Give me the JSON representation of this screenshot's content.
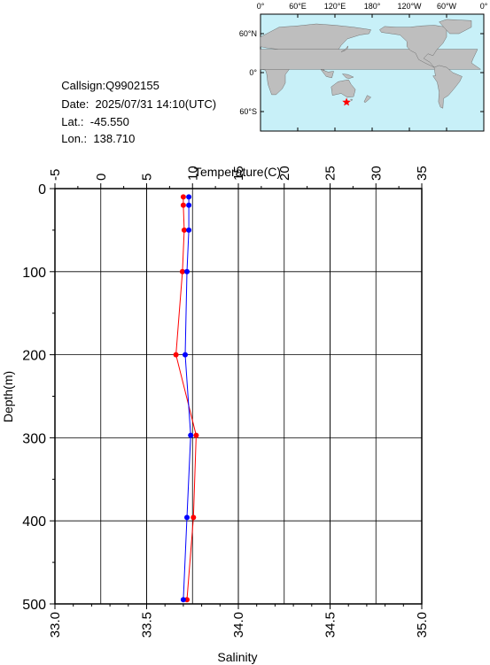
{
  "station": {
    "callsign_text": "Callsign:Q9902155",
    "date_label": "Date:",
    "date_value": "2025/07/31 14:10(UTC)",
    "lat_label": "Lat.:",
    "lat_value": "-45.550",
    "lon_label": "Lon.:",
    "lon_value": "138.710"
  },
  "map": {
    "top_labels": [
      "0°",
      "60°E",
      "120°E",
      "180°",
      "120°W",
      "60°W",
      "0°"
    ],
    "lat_labels": [
      "60°N",
      "0°",
      "60°S"
    ],
    "ocean_color": "#c8f0f8",
    "land_color": "#bebebe",
    "marker_color": "#ff0000",
    "marker_lon": 138.71,
    "marker_lat": -45.55
  },
  "chart_data": {
    "type": "scatter",
    "top_axis": {
      "label": "Temperature(C)",
      "range": [
        -5,
        35
      ],
      "ticks": [
        -5,
        0,
        5,
        10,
        15,
        20,
        25,
        30,
        35
      ],
      "tick_labels": [
        "-5",
        "0",
        "5",
        "10",
        "15",
        "20",
        "25",
        "30",
        "35"
      ]
    },
    "bottom_axis": {
      "label": "Salinity",
      "range": [
        33.0,
        35.0
      ],
      "ticks": [
        33.0,
        33.5,
        34.0,
        34.5,
        35.0
      ],
      "tick_labels": [
        "33.0",
        "33.5",
        "34.0",
        "34.5",
        "35.0"
      ]
    },
    "y_axis": {
      "label": "Depth(m)",
      "range": [
        0,
        500
      ],
      "inverted": true,
      "ticks": [
        0,
        100,
        200,
        300,
        400,
        500
      ],
      "tick_labels": [
        "0",
        "100",
        "200",
        "300",
        "400",
        "500"
      ]
    },
    "grid": true,
    "series": [
      {
        "variable": "temperature",
        "color": "#ff0000",
        "depth": [
          10,
          20,
          50,
          100,
          200,
          297,
          396,
          495
        ],
        "values": [
          9.0,
          9.0,
          9.1,
          8.9,
          8.2,
          10.4,
          10.1,
          9.4
        ]
      },
      {
        "variable": "salinity",
        "color": "#0000ff",
        "depth": [
          10,
          20,
          50,
          100,
          200,
          297,
          396,
          495
        ],
        "values": [
          33.73,
          33.73,
          33.73,
          33.72,
          33.71,
          33.74,
          33.72,
          33.7
        ]
      }
    ]
  }
}
